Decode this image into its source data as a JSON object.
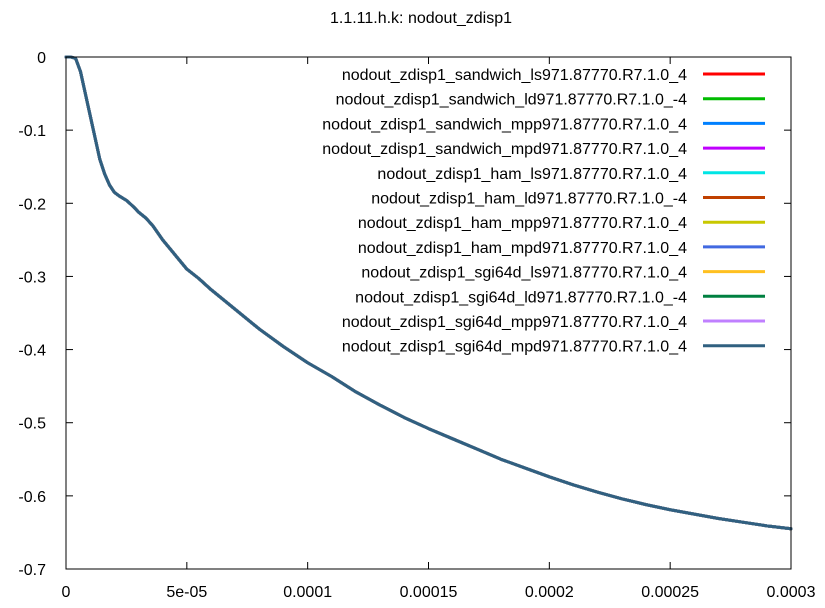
{
  "chart_data": {
    "type": "line",
    "title": "1.1.11.h.k: nodout_zdisp1",
    "xlabel": "",
    "ylabel": "",
    "xlim": [
      0,
      0.0003
    ],
    "ylim": [
      -0.7,
      0
    ],
    "x_ticks": [
      0,
      5e-05,
      0.0001,
      0.00015,
      0.0002,
      0.00025,
      0.0003
    ],
    "x_tick_labels": [
      "0",
      "5e-05",
      "0.0001",
      "0.00015",
      "0.0002",
      "0.00025",
      "0.0003"
    ],
    "y_ticks": [
      0,
      -0.1,
      -0.2,
      -0.3,
      -0.4,
      -0.5,
      -0.6,
      -0.7
    ],
    "y_tick_labels": [
      "0",
      "-0.1",
      "-0.2",
      "-0.3",
      "-0.4",
      "-0.5",
      "-0.6",
      "-0.7"
    ],
    "grid": false,
    "legend_position": "top-right",
    "x": [
      0,
      2e-06,
      4e-06,
      6e-06,
      8e-06,
      1e-05,
      1.2e-05,
      1.4e-05,
      1.6e-05,
      1.8e-05,
      2e-05,
      2.2e-05,
      2.5e-05,
      2.8e-05,
      3e-05,
      3.3e-05,
      3.6e-05,
      4e-05,
      4.5e-05,
      5e-05,
      5.5e-05,
      6e-05,
      7e-05,
      8e-05,
      9e-05,
      0.0001,
      0.00011,
      0.00012,
      0.00013,
      0.00014,
      0.00015,
      0.00016,
      0.00017,
      0.00018,
      0.00019,
      0.0002,
      0.00021,
      0.00022,
      0.00023,
      0.00024,
      0.00025,
      0.00026,
      0.00027,
      0.00028,
      0.00029,
      0.0003
    ],
    "series": [
      {
        "name": "nodout_zdisp1_sandwich_ls971.87770.R7.1.0_4",
        "color": "#ff0000",
        "values": [
          0,
          0,
          -0.002,
          -0.02,
          -0.05,
          -0.08,
          -0.11,
          -0.14,
          -0.16,
          -0.175,
          -0.185,
          -0.19,
          -0.196,
          -0.205,
          -0.212,
          -0.22,
          -0.231,
          -0.25,
          -0.27,
          -0.29,
          -0.303,
          -0.318,
          -0.345,
          -0.372,
          -0.396,
          -0.418,
          -0.437,
          -0.458,
          -0.476,
          -0.493,
          -0.508,
          -0.522,
          -0.536,
          -0.55,
          -0.562,
          -0.574,
          -0.585,
          -0.595,
          -0.604,
          -0.612,
          -0.619,
          -0.625,
          -0.631,
          -0.636,
          -0.641,
          -0.645
        ]
      },
      {
        "name": "nodout_zdisp1_sandwich_ld971.87770.R7.1.0_-4",
        "color": "#00bb00",
        "values": [
          0,
          0,
          -0.002,
          -0.02,
          -0.05,
          -0.08,
          -0.11,
          -0.14,
          -0.16,
          -0.175,
          -0.185,
          -0.19,
          -0.196,
          -0.205,
          -0.212,
          -0.22,
          -0.231,
          -0.25,
          -0.27,
          -0.29,
          -0.303,
          -0.318,
          -0.345,
          -0.372,
          -0.396,
          -0.418,
          -0.437,
          -0.458,
          -0.476,
          -0.493,
          -0.508,
          -0.522,
          -0.536,
          -0.55,
          -0.562,
          -0.574,
          -0.585,
          -0.595,
          -0.604,
          -0.612,
          -0.619,
          -0.625,
          -0.631,
          -0.636,
          -0.641,
          -0.645
        ]
      },
      {
        "name": "nodout_zdisp1_sandwich_mpp971.87770.R7.1.0_4",
        "color": "#0080ff",
        "values": [
          0,
          0,
          -0.002,
          -0.02,
          -0.05,
          -0.08,
          -0.11,
          -0.14,
          -0.16,
          -0.175,
          -0.185,
          -0.19,
          -0.196,
          -0.205,
          -0.212,
          -0.22,
          -0.231,
          -0.25,
          -0.27,
          -0.29,
          -0.303,
          -0.318,
          -0.345,
          -0.372,
          -0.396,
          -0.418,
          -0.437,
          -0.458,
          -0.476,
          -0.493,
          -0.508,
          -0.522,
          -0.536,
          -0.55,
          -0.562,
          -0.574,
          -0.585,
          -0.595,
          -0.604,
          -0.612,
          -0.619,
          -0.625,
          -0.631,
          -0.636,
          -0.641,
          -0.645
        ]
      },
      {
        "name": "nodout_zdisp1_sandwich_mpd971.87770.R7.1.0_4",
        "color": "#c000ff",
        "values": [
          0,
          0,
          -0.002,
          -0.02,
          -0.05,
          -0.08,
          -0.11,
          -0.14,
          -0.16,
          -0.175,
          -0.185,
          -0.19,
          -0.196,
          -0.205,
          -0.212,
          -0.22,
          -0.231,
          -0.25,
          -0.27,
          -0.29,
          -0.303,
          -0.318,
          -0.345,
          -0.372,
          -0.396,
          -0.418,
          -0.437,
          -0.458,
          -0.476,
          -0.493,
          -0.508,
          -0.522,
          -0.536,
          -0.55,
          -0.562,
          -0.574,
          -0.585,
          -0.595,
          -0.604,
          -0.612,
          -0.619,
          -0.625,
          -0.631,
          -0.636,
          -0.641,
          -0.645
        ]
      },
      {
        "name": "nodout_zdisp1_ham_ls971.87770.R7.1.0_4",
        "color": "#00e5e5",
        "values": [
          0,
          0,
          -0.002,
          -0.02,
          -0.05,
          -0.08,
          -0.11,
          -0.14,
          -0.16,
          -0.175,
          -0.185,
          -0.19,
          -0.196,
          -0.205,
          -0.212,
          -0.22,
          -0.231,
          -0.25,
          -0.27,
          -0.29,
          -0.303,
          -0.318,
          -0.345,
          -0.372,
          -0.396,
          -0.418,
          -0.437,
          -0.458,
          -0.476,
          -0.493,
          -0.508,
          -0.522,
          -0.536,
          -0.55,
          -0.562,
          -0.574,
          -0.585,
          -0.595,
          -0.604,
          -0.612,
          -0.619,
          -0.625,
          -0.631,
          -0.636,
          -0.641,
          -0.645
        ]
      },
      {
        "name": "nodout_zdisp1_ham_ld971.87770.R7.1.0_-4",
        "color": "#c04000",
        "values": [
          0,
          0,
          -0.002,
          -0.02,
          -0.05,
          -0.08,
          -0.11,
          -0.14,
          -0.16,
          -0.175,
          -0.185,
          -0.19,
          -0.196,
          -0.205,
          -0.212,
          -0.22,
          -0.231,
          -0.25,
          -0.27,
          -0.29,
          -0.303,
          -0.318,
          -0.345,
          -0.372,
          -0.396,
          -0.418,
          -0.437,
          -0.458,
          -0.476,
          -0.493,
          -0.508,
          -0.522,
          -0.536,
          -0.55,
          -0.562,
          -0.574,
          -0.585,
          -0.595,
          -0.604,
          -0.612,
          -0.619,
          -0.625,
          -0.631,
          -0.636,
          -0.641,
          -0.645
        ]
      },
      {
        "name": "nodout_zdisp1_ham_mpp971.87770.R7.1.0_4",
        "color": "#c8c800",
        "values": [
          0,
          0,
          -0.002,
          -0.02,
          -0.05,
          -0.08,
          -0.11,
          -0.14,
          -0.16,
          -0.175,
          -0.185,
          -0.19,
          -0.196,
          -0.205,
          -0.212,
          -0.22,
          -0.231,
          -0.25,
          -0.27,
          -0.29,
          -0.303,
          -0.318,
          -0.345,
          -0.372,
          -0.396,
          -0.418,
          -0.437,
          -0.458,
          -0.476,
          -0.493,
          -0.508,
          -0.522,
          -0.536,
          -0.55,
          -0.562,
          -0.574,
          -0.585,
          -0.595,
          -0.604,
          -0.612,
          -0.619,
          -0.625,
          -0.631,
          -0.636,
          -0.641,
          -0.645
        ]
      },
      {
        "name": "nodout_zdisp1_ham_mpd971.87770.R7.1.0_4",
        "color": "#4169e1",
        "values": [
          0,
          0,
          -0.002,
          -0.02,
          -0.05,
          -0.08,
          -0.11,
          -0.14,
          -0.16,
          -0.175,
          -0.185,
          -0.19,
          -0.196,
          -0.205,
          -0.212,
          -0.22,
          -0.231,
          -0.25,
          -0.27,
          -0.29,
          -0.303,
          -0.318,
          -0.345,
          -0.372,
          -0.396,
          -0.418,
          -0.437,
          -0.458,
          -0.476,
          -0.493,
          -0.508,
          -0.522,
          -0.536,
          -0.55,
          -0.562,
          -0.574,
          -0.585,
          -0.595,
          -0.604,
          -0.612,
          -0.619,
          -0.625,
          -0.631,
          -0.636,
          -0.641,
          -0.645
        ]
      },
      {
        "name": "nodout_zdisp1_sgi64d_ls971.87770.R7.1.0_4",
        "color": "#ffc020",
        "values": [
          0,
          0,
          -0.002,
          -0.02,
          -0.05,
          -0.08,
          -0.11,
          -0.14,
          -0.16,
          -0.175,
          -0.185,
          -0.19,
          -0.196,
          -0.205,
          -0.212,
          -0.22,
          -0.231,
          -0.25,
          -0.27,
          -0.29,
          -0.303,
          -0.318,
          -0.345,
          -0.372,
          -0.396,
          -0.418,
          -0.437,
          -0.458,
          -0.476,
          -0.493,
          -0.508,
          -0.522,
          -0.536,
          -0.55,
          -0.562,
          -0.574,
          -0.585,
          -0.595,
          -0.604,
          -0.612,
          -0.619,
          -0.625,
          -0.631,
          -0.636,
          -0.641,
          -0.645
        ]
      },
      {
        "name": "nodout_zdisp1_sgi64d_ld971.87770.R7.1.0_-4",
        "color": "#008040",
        "values": [
          0,
          0,
          -0.002,
          -0.02,
          -0.05,
          -0.08,
          -0.11,
          -0.14,
          -0.16,
          -0.175,
          -0.185,
          -0.19,
          -0.196,
          -0.205,
          -0.212,
          -0.22,
          -0.231,
          -0.25,
          -0.27,
          -0.29,
          -0.303,
          -0.318,
          -0.345,
          -0.372,
          -0.396,
          -0.418,
          -0.437,
          -0.458,
          -0.476,
          -0.493,
          -0.508,
          -0.522,
          -0.536,
          -0.55,
          -0.562,
          -0.574,
          -0.585,
          -0.595,
          -0.604,
          -0.612,
          -0.619,
          -0.625,
          -0.631,
          -0.636,
          -0.641,
          -0.645
        ]
      },
      {
        "name": "nodout_zdisp1_sgi64d_mpp971.87770.R7.1.0_4",
        "color": "#c080ff",
        "values": [
          0,
          0,
          -0.002,
          -0.02,
          -0.05,
          -0.08,
          -0.11,
          -0.14,
          -0.16,
          -0.175,
          -0.185,
          -0.19,
          -0.196,
          -0.205,
          -0.212,
          -0.22,
          -0.231,
          -0.25,
          -0.27,
          -0.29,
          -0.303,
          -0.318,
          -0.345,
          -0.372,
          -0.396,
          -0.418,
          -0.437,
          -0.458,
          -0.476,
          -0.493,
          -0.508,
          -0.522,
          -0.536,
          -0.55,
          -0.562,
          -0.574,
          -0.585,
          -0.595,
          -0.604,
          -0.612,
          -0.619,
          -0.625,
          -0.631,
          -0.636,
          -0.641,
          -0.645
        ]
      },
      {
        "name": "nodout_zdisp1_sgi64d_mpd971.87770.R7.1.0_4",
        "color": "#306080",
        "values": [
          0,
          0,
          -0.002,
          -0.02,
          -0.05,
          -0.08,
          -0.11,
          -0.14,
          -0.16,
          -0.175,
          -0.185,
          -0.19,
          -0.196,
          -0.205,
          -0.212,
          -0.22,
          -0.231,
          -0.25,
          -0.27,
          -0.29,
          -0.303,
          -0.318,
          -0.345,
          -0.372,
          -0.396,
          -0.418,
          -0.437,
          -0.458,
          -0.476,
          -0.493,
          -0.508,
          -0.522,
          -0.536,
          -0.55,
          -0.562,
          -0.574,
          -0.585,
          -0.595,
          -0.604,
          -0.612,
          -0.619,
          -0.625,
          -0.631,
          -0.636,
          -0.641,
          -0.645
        ]
      }
    ]
  }
}
